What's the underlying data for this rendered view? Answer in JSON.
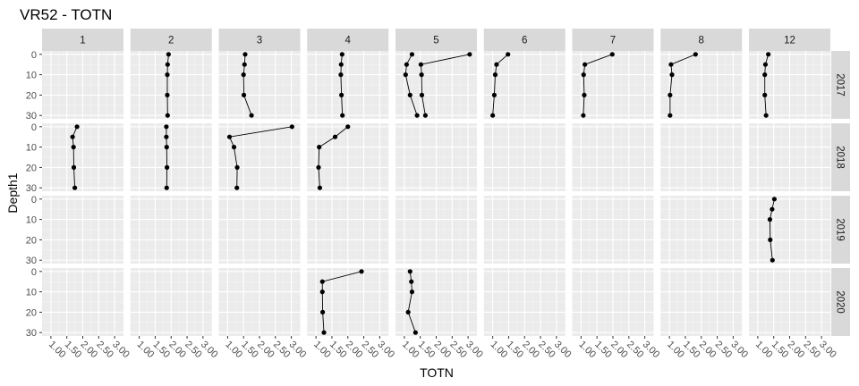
{
  "chart_data": {
    "type": "line",
    "title": "VR52  -  TOTN",
    "xlabel": "TOTN",
    "ylabel": "Depth1",
    "xlim": [
      0.85,
      3.15
    ],
    "ylim": [
      0,
      30
    ],
    "y_reversed": true,
    "x_ticks": [
      1.0,
      1.5,
      2.0,
      2.5,
      3.0
    ],
    "x_tick_labels": [
      "1.00",
      "1.50",
      "2.00",
      "2.50",
      "3.00"
    ],
    "y_ticks": [
      0,
      10,
      20,
      30
    ],
    "y_tick_labels": [
      "0",
      "10",
      "20",
      "30"
    ],
    "column_facet_labels": [
      "1",
      "2",
      "3",
      "4",
      "5",
      "6",
      "7",
      "8",
      "12"
    ],
    "row_facet_labels": [
      "2017",
      "2018",
      "2019",
      "2020"
    ],
    "grid": true,
    "legend": "none",
    "series": [
      {
        "row": 0,
        "col": 1,
        "x": [
          1.92,
          1.89,
          1.88,
          1.88,
          1.89
        ],
        "y": [
          0,
          5,
          10,
          20,
          30
        ]
      },
      {
        "row": 0,
        "col": 2,
        "x": [
          1.55,
          1.53,
          1.5,
          1.51,
          1.75
        ],
        "y": [
          0,
          5,
          10,
          20,
          30
        ]
      },
      {
        "row": 0,
        "col": 3,
        "x": [
          1.82,
          1.79,
          1.78,
          1.8,
          1.83
        ],
        "y": [
          0,
          5,
          10,
          20,
          30
        ]
      },
      {
        "row": 0,
        "col": 4,
        "x": [
          1.24,
          1.07,
          1.04,
          1.18,
          1.4
        ],
        "y": [
          0,
          5,
          10,
          20,
          30
        ]
      },
      {
        "row": 0,
        "col": 4,
        "x": [
          3.05,
          1.52,
          1.54,
          1.55,
          1.66
        ],
        "y": [
          0,
          5,
          10,
          20,
          30
        ]
      },
      {
        "row": 0,
        "col": 5,
        "x": [
          1.48,
          1.12,
          1.08,
          1.05,
          1.0
        ],
        "y": [
          0,
          5,
          10,
          20,
          30
        ]
      },
      {
        "row": 0,
        "col": 6,
        "x": [
          1.98,
          1.12,
          1.08,
          1.1,
          1.07
        ],
        "y": [
          0,
          5,
          10,
          20,
          30
        ]
      },
      {
        "row": 0,
        "col": 7,
        "x": [
          1.82,
          1.05,
          1.08,
          1.02,
          1.02
        ],
        "y": [
          0,
          5,
          10,
          20,
          30
        ]
      },
      {
        "row": 0,
        "col": 8,
        "x": [
          1.33,
          1.24,
          1.22,
          1.22,
          1.26
        ],
        "y": [
          0,
          5,
          10,
          20,
          30
        ]
      },
      {
        "row": 1,
        "col": 0,
        "x": [
          1.82,
          1.68,
          1.71,
          1.72,
          1.75
        ],
        "y": [
          0,
          5,
          10,
          20,
          30
        ]
      },
      {
        "row": 1,
        "col": 1,
        "x": [
          1.85,
          1.85,
          1.86,
          1.87,
          1.86
        ],
        "y": [
          0,
          5,
          10,
          20,
          30
        ]
      },
      {
        "row": 1,
        "col": 2,
        "x": [
          3.02,
          1.06,
          1.2,
          1.3,
          1.29
        ],
        "y": [
          0,
          5,
          10,
          20,
          30
        ]
      },
      {
        "row": 1,
        "col": 3,
        "x": [
          2.0,
          1.6,
          1.1,
          1.08,
          1.12
        ],
        "y": [
          0,
          5,
          10,
          20,
          30
        ]
      },
      {
        "row": 2,
        "col": 8,
        "x": [
          1.52,
          1.45,
          1.38,
          1.39,
          1.46
        ],
        "y": [
          0,
          5,
          10,
          20,
          30
        ]
      },
      {
        "row": 3,
        "col": 3,
        "x": [
          2.43,
          1.2,
          1.2,
          1.21,
          1.25
        ],
        "y": [
          0,
          5,
          10,
          20,
          30
        ]
      },
      {
        "row": 3,
        "col": 4,
        "x": [
          1.18,
          1.22,
          1.24,
          1.12,
          1.35
        ],
        "y": [
          0,
          5,
          10,
          20,
          30
        ]
      }
    ]
  }
}
